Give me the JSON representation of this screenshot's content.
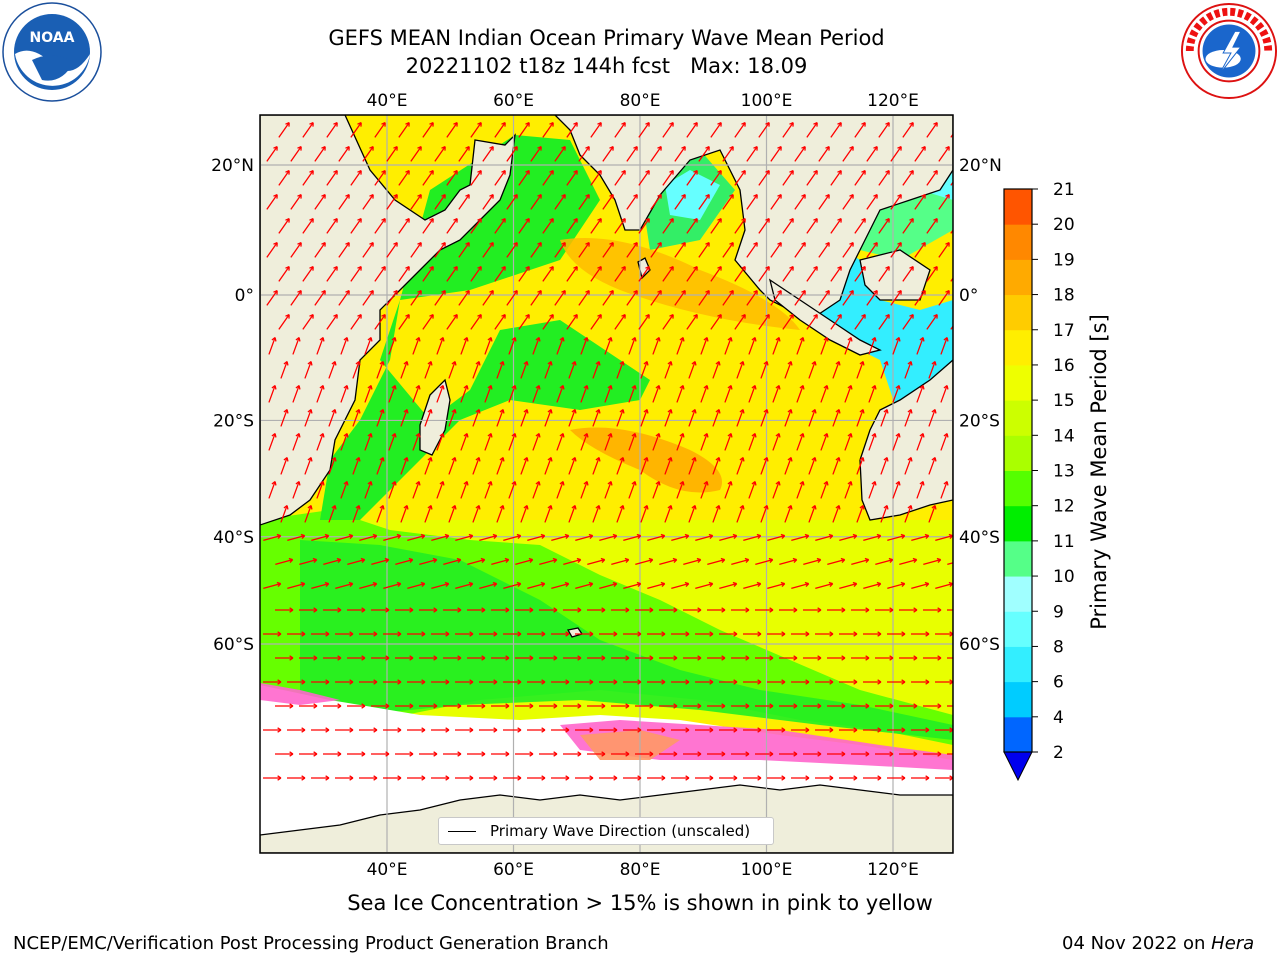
{
  "title": {
    "line1": "GEFS MEAN Indian Ocean Primary Wave Mean Period",
    "line2": "20221102 t18z 144h fcst   Max: 18.09"
  },
  "logos": {
    "noaa": {
      "icon": "noaa-logo-icon",
      "text": "NOAA"
    },
    "nws": {
      "icon": "nws-logo-icon"
    }
  },
  "map": {
    "lon_ticks_top": [
      "40°E",
      "60°E",
      "80°E",
      "100°E",
      "120°E"
    ],
    "lon_ticks_bottom": [
      "40°E",
      "60°E",
      "80°E",
      "100°E",
      "120°E"
    ],
    "lat_ticks_left": [
      "20°N",
      "0°",
      "20°S",
      "40°S",
      "60°S"
    ],
    "lat_ticks_right": [
      "20°N",
      "0°",
      "20°S",
      "40°S",
      "60°S"
    ],
    "lon_values": [
      40,
      60,
      80,
      100,
      120
    ],
    "lat_values": [
      20,
      0,
      -20,
      -40,
      -60
    ],
    "legend_label": "Primary Wave Direction (unscaled)",
    "land_color": "#efeedb",
    "arrow_color": "#ff0000"
  },
  "colorbar": {
    "label": "Primary Wave Mean Period [s]",
    "ticks": [
      "2",
      "4",
      "6",
      "8",
      "9",
      "10",
      "11",
      "12",
      "13",
      "14",
      "15",
      "16",
      "17",
      "18",
      "19",
      "20",
      "21"
    ],
    "colors": [
      "#0066ff",
      "#00ccff",
      "#33eeff",
      "#66ffff",
      "#a0ffff",
      "#55ff88",
      "#00ee00",
      "#55ff00",
      "#aaff00",
      "#ccff00",
      "#eeff00",
      "#ffee00",
      "#ffcc00",
      "#ffaa00",
      "#ff8800",
      "#ff5500",
      "#ff2200",
      "#ff0000"
    ],
    "extend_color": "#0000ee"
  },
  "bottom_note": "Sea Ice Concentration > 15% is shown in pink to yellow",
  "footer": {
    "left": "NCEP/EMC/Verification Post Processing Product Generation Branch",
    "right_date": "04 Nov 2022 on ",
    "right_host": "Hera"
  }
}
